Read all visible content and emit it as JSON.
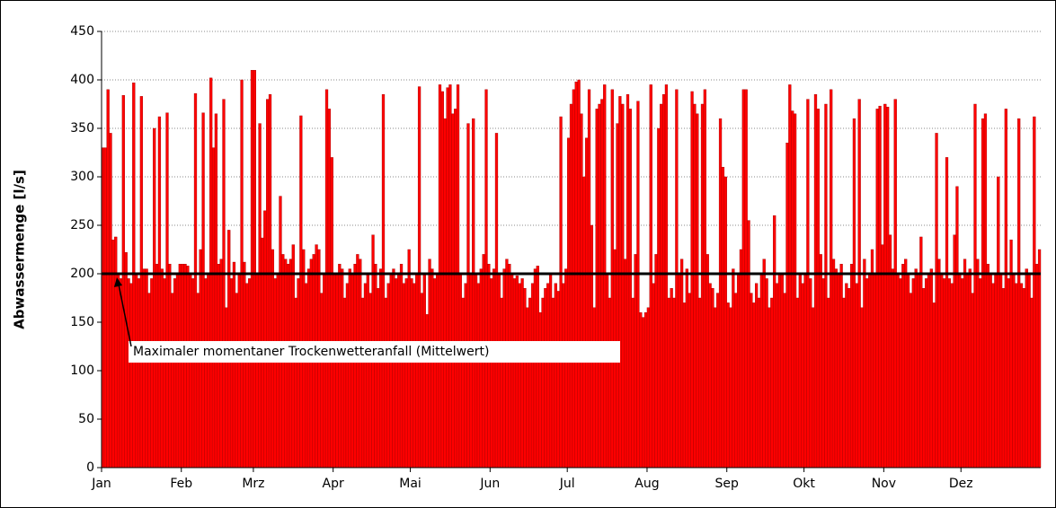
{
  "chart_data": {
    "type": "bar",
    "ylabel": "Abwassermenge [l/s]",
    "categories": [
      "Jan",
      null,
      null,
      null,
      null,
      null,
      null,
      null,
      null,
      null,
      null,
      null,
      null,
      null,
      null,
      null,
      null,
      null,
      null,
      null,
      null,
      null,
      null,
      null,
      null,
      null,
      null,
      null,
      null,
      null,
      null,
      "Feb",
      null,
      null,
      null,
      null,
      null,
      null,
      null,
      null,
      null,
      null,
      null,
      null,
      null,
      null,
      null,
      null,
      null,
      null,
      null,
      null,
      null,
      null,
      null,
      null,
      null,
      null,
      null,
      "Mrz",
      null,
      null,
      null,
      null,
      null,
      null,
      null,
      null,
      null,
      null,
      null,
      null,
      null,
      null,
      null,
      null,
      null,
      null,
      null,
      null,
      null,
      null,
      null,
      null,
      null,
      null,
      null,
      null,
      null,
      null,
      "Apr",
      null,
      null,
      null,
      null,
      null,
      null,
      null,
      null,
      null,
      null,
      null,
      null,
      null,
      null,
      null,
      null,
      null,
      null,
      null,
      null,
      null,
      null,
      null,
      null,
      null,
      null,
      null,
      null,
      null,
      "Mai",
      null,
      null,
      null,
      null,
      null,
      null,
      null,
      null,
      null,
      null,
      null,
      null,
      null,
      null,
      null,
      null,
      null,
      null,
      null,
      null,
      null,
      null,
      null,
      null,
      null,
      null,
      null,
      null,
      null,
      null,
      "Jun",
      null,
      null,
      null,
      null,
      null,
      null,
      null,
      null,
      null,
      null,
      null,
      null,
      null,
      null,
      null,
      null,
      null,
      null,
      null,
      null,
      null,
      null,
      null,
      null,
      null,
      null,
      null,
      null,
      null,
      "Jul",
      null,
      null,
      null,
      null,
      null,
      null,
      null,
      null,
      null,
      null,
      null,
      null,
      null,
      null,
      null,
      null,
      null,
      null,
      null,
      null,
      null,
      null,
      null,
      null,
      null,
      null,
      null,
      null,
      null,
      null,
      "Aug",
      null,
      null,
      null,
      null,
      null,
      null,
      null,
      null,
      null,
      null,
      null,
      null,
      null,
      null,
      null,
      null,
      null,
      null,
      null,
      null,
      null,
      null,
      null,
      null,
      null,
      null,
      null,
      null,
      null,
      null,
      "Sep",
      null,
      null,
      null,
      null,
      null,
      null,
      null,
      null,
      null,
      null,
      null,
      null,
      null,
      null,
      null,
      null,
      null,
      null,
      null,
      null,
      null,
      null,
      null,
      null,
      null,
      null,
      null,
      null,
      null,
      "Okt",
      null,
      null,
      null,
      null,
      null,
      null,
      null,
      null,
      null,
      null,
      null,
      null,
      null,
      null,
      null,
      null,
      null,
      null,
      null,
      null,
      null,
      null,
      null,
      null,
      null,
      null,
      null,
      null,
      null,
      null,
      "Nov",
      null,
      null,
      null,
      null,
      null,
      null,
      null,
      null,
      null,
      null,
      null,
      null,
      null,
      null,
      null,
      null,
      null,
      null,
      null,
      null,
      null,
      null,
      null,
      null,
      null,
      null,
      null,
      null,
      null,
      "Dez",
      null,
      null,
      null,
      null,
      null,
      null,
      null,
      null,
      null,
      null,
      null,
      null,
      null,
      null,
      null,
      null,
      null,
      null,
      null,
      null,
      null,
      null,
      null,
      null,
      null,
      null,
      null,
      null,
      null,
      null
    ],
    "values": [
      330,
      330,
      390,
      345,
      235,
      238,
      200,
      195,
      384,
      222,
      195,
      190,
      397,
      200,
      195,
      383,
      205,
      205,
      180,
      195,
      350,
      210,
      362,
      205,
      195,
      366,
      210,
      180,
      195,
      200,
      210,
      210,
      210,
      208,
      200,
      195,
      386,
      180,
      225,
      366,
      195,
      200,
      402,
      330,
      365,
      210,
      215,
      380,
      165,
      245,
      195,
      212,
      180,
      200,
      400,
      212,
      190,
      195,
      410,
      410,
      200,
      355,
      237,
      265,
      380,
      385,
      225,
      195,
      200,
      280,
      220,
      215,
      210,
      215,
      230,
      175,
      195,
      363,
      225,
      190,
      205,
      215,
      220,
      230,
      225,
      180,
      200,
      390,
      370,
      320,
      200,
      200,
      210,
      205,
      175,
      190,
      205,
      200,
      210,
      220,
      215,
      175,
      190,
      200,
      180,
      240,
      210,
      185,
      205,
      385,
      175,
      190,
      200,
      205,
      195,
      200,
      210,
      190,
      195,
      225,
      195,
      190,
      200,
      393,
      180,
      200,
      158,
      215,
      205,
      195,
      200,
      395,
      388,
      360,
      392,
      395,
      365,
      370,
      395,
      200,
      175,
      190,
      355,
      200,
      360,
      200,
      190,
      205,
      220,
      390,
      210,
      195,
      205,
      345,
      200,
      175,
      205,
      215,
      210,
      200,
      195,
      198,
      190,
      195,
      185,
      165,
      175,
      190,
      205,
      208,
      160,
      175,
      185,
      190,
      200,
      175,
      190,
      182,
      362,
      190,
      205,
      340,
      375,
      390,
      398,
      400,
      365,
      300,
      340,
      390,
      250,
      165,
      370,
      375,
      380,
      395,
      200,
      175,
      390,
      225,
      355,
      383,
      375,
      215,
      385,
      370,
      175,
      220,
      378,
      160,
      155,
      160,
      165,
      395,
      190,
      220,
      350,
      375,
      385,
      395,
      175,
      185,
      175,
      390,
      200,
      215,
      170,
      205,
      180,
      388,
      375,
      365,
      175,
      375,
      390,
      220,
      190,
      185,
      165,
      180,
      360,
      310,
      300,
      170,
      165,
      205,
      180,
      200,
      225,
      390,
      390,
      255,
      180,
      170,
      190,
      175,
      200,
      215,
      195,
      165,
      175,
      260,
      190,
      200,
      200,
      180,
      335,
      395,
      368,
      365,
      175,
      200,
      190,
      200,
      380,
      195,
      165,
      385,
      370,
      220,
      195,
      375,
      175,
      390,
      215,
      205,
      200,
      210,
      175,
      190,
      185,
      210,
      360,
      190,
      380,
      165,
      215,
      195,
      200,
      225,
      200,
      370,
      373,
      230,
      375,
      372,
      240,
      205,
      380,
      200,
      195,
      210,
      215,
      200,
      180,
      195,
      205,
      200,
      238,
      185,
      195,
      200,
      205,
      170,
      345,
      215,
      200,
      195,
      320,
      195,
      190,
      240,
      290,
      200,
      195,
      215,
      200,
      205,
      180,
      375,
      215,
      195,
      360,
      365,
      210,
      200,
      190,
      200,
      300,
      200,
      185,
      370,
      195,
      235,
      200,
      190,
      360,
      190,
      185,
      205,
      200,
      175,
      362,
      210,
      225
    ],
    "color": "#ff0000",
    "ylim": [
      0,
      450
    ],
    "yticks": [
      0,
      50,
      100,
      150,
      200,
      250,
      300,
      350,
      400,
      450
    ],
    "grid": true,
    "reference_line": {
      "value": 200,
      "label": "Maximaler momentaner Trockenwetteranfall (Mittelwert)"
    }
  }
}
